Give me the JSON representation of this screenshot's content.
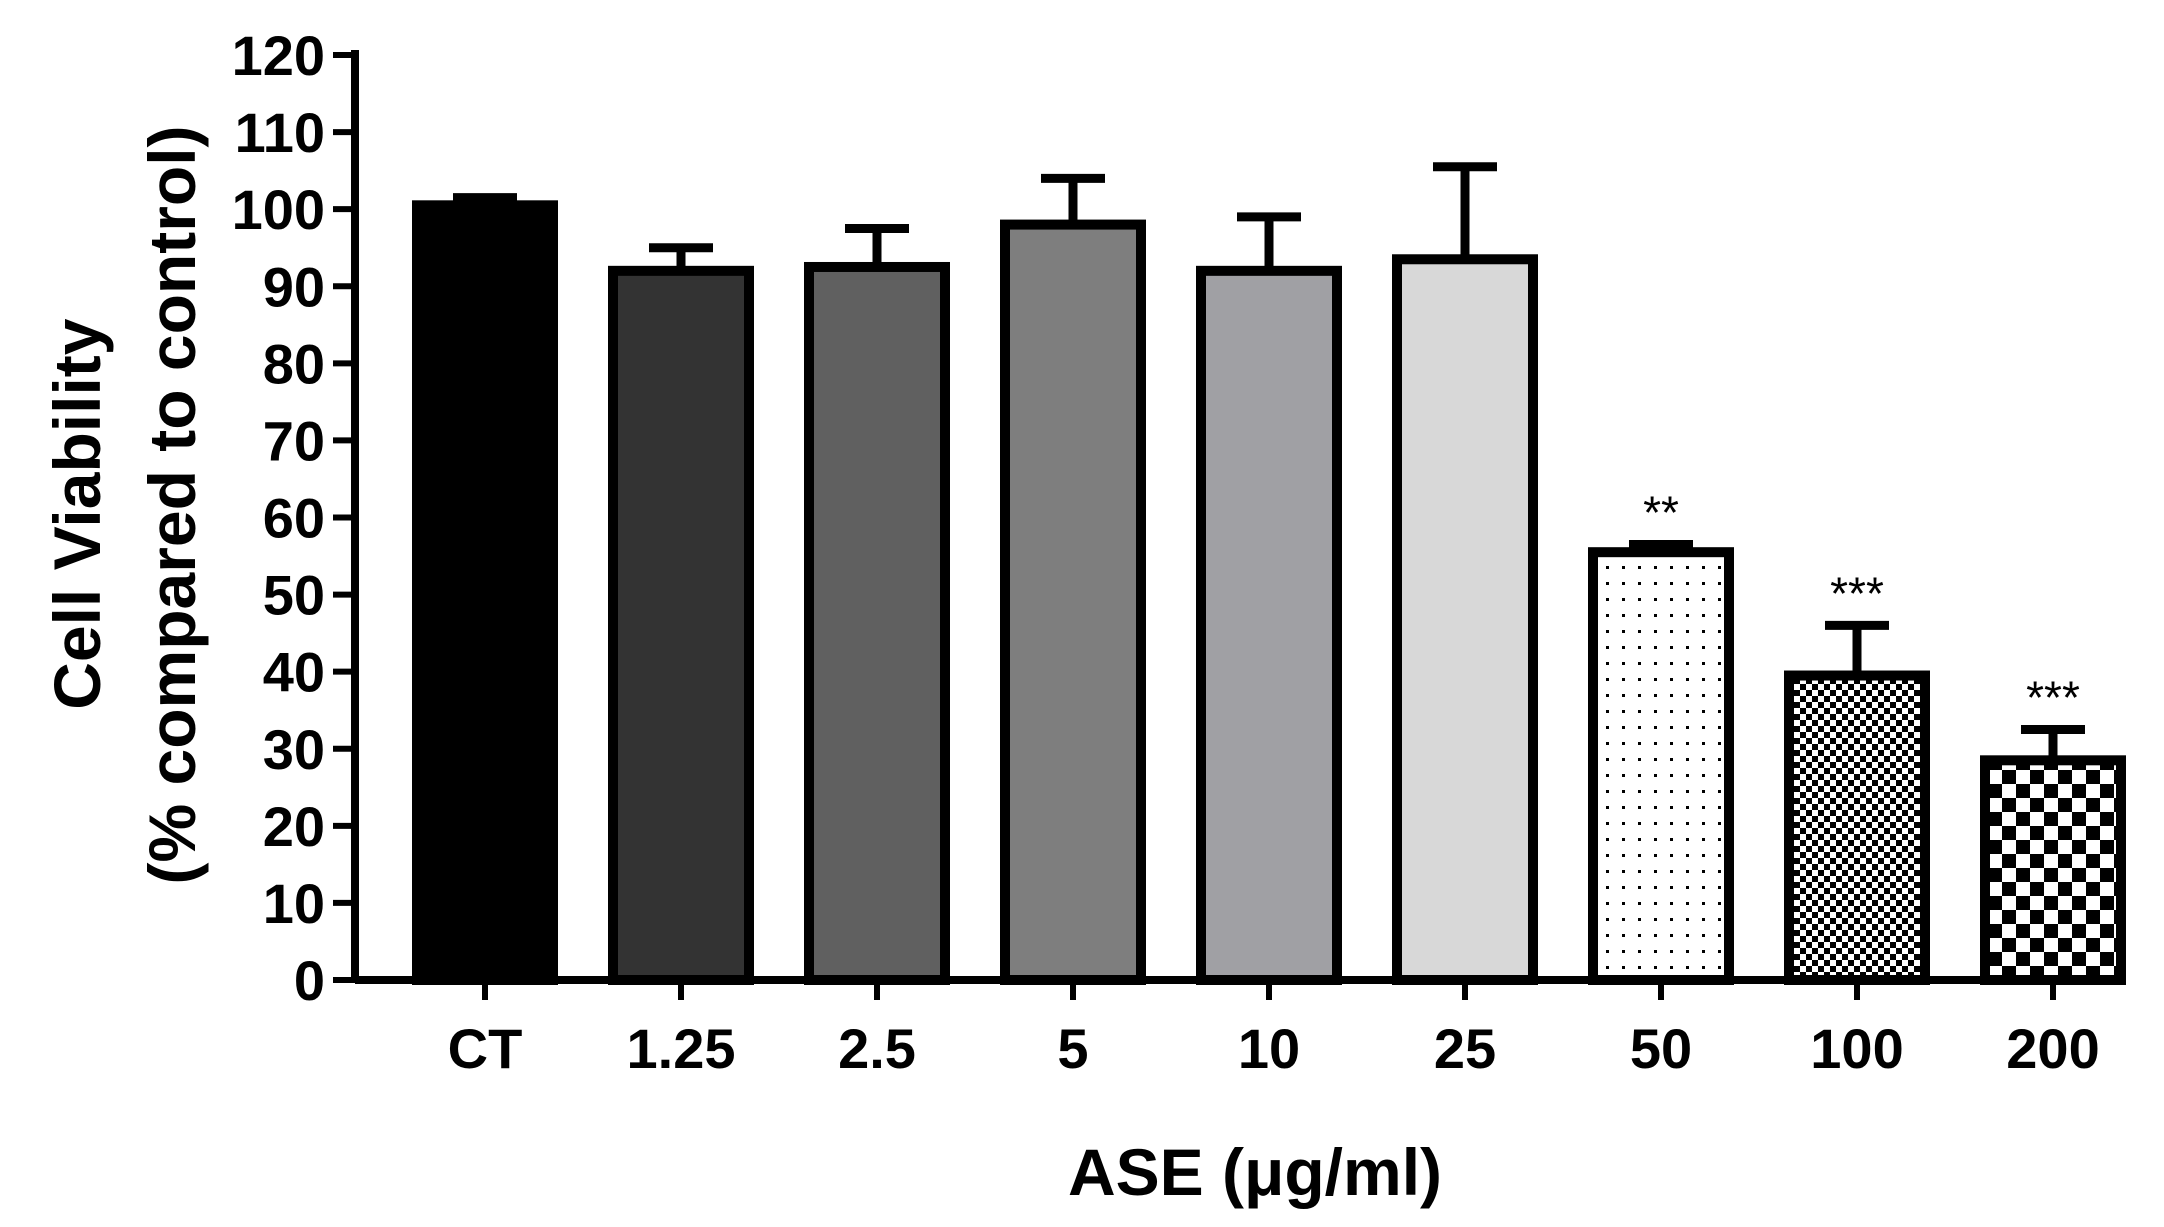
{
  "chart_data": {
    "type": "bar",
    "title": "",
    "xlabel": "ASE (μg/ml)",
    "ylabel_line1": "Cell Viability",
    "ylabel_line2": "(% compared to control)",
    "ylim": [
      0,
      120
    ],
    "ytick_step": 10,
    "grid": false,
    "categories": [
      "CT",
      "1.25",
      "2.5",
      "5",
      "10",
      "25",
      "50",
      "100",
      "200"
    ],
    "values": [
      100.5,
      92,
      92.5,
      98,
      92,
      93.5,
      55.5,
      39.5,
      28.5
    ],
    "error": [
      1,
      3,
      5,
      6,
      7,
      12,
      1,
      6.5,
      4
    ],
    "significance": [
      "",
      "",
      "",
      "",
      "",
      "",
      "**",
      "***",
      "***"
    ],
    "fills": [
      "#000000",
      "#333333",
      "#606060",
      "#7e7e7e",
      "#a0a0a4",
      "#d8d8d8",
      "dots",
      "checker-fine",
      "checker-coarse"
    ]
  }
}
